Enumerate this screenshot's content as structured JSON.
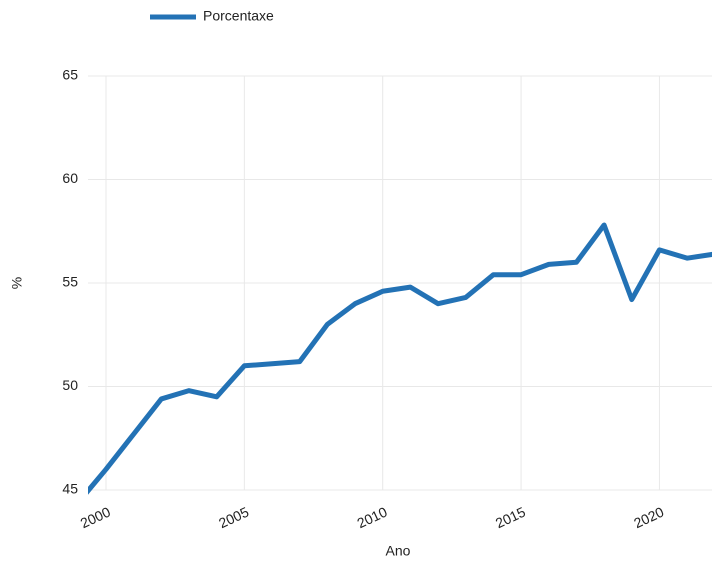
{
  "chart_data": {
    "type": "line",
    "x": [
      1999,
      2000,
      2001,
      2002,
      2003,
      2004,
      2005,
      2006,
      2007,
      2008,
      2009,
      2010,
      2011,
      2012,
      2013,
      2014,
      2015,
      2016,
      2017,
      2018,
      2019,
      2020,
      2021,
      2022
    ],
    "series": [
      {
        "name": "Porcentaxe",
        "color": "#2372b5",
        "values": [
          44.4,
          46.0,
          47.7,
          49.4,
          49.8,
          49.5,
          51.0,
          51.1,
          51.2,
          53.0,
          54.0,
          54.6,
          54.8,
          54.0,
          54.3,
          55.4,
          55.4,
          55.9,
          56.0,
          57.8,
          54.2,
          56.6,
          56.2,
          56.4
        ]
      }
    ],
    "xlim": [
      1999.35,
      2021.9
    ],
    "xticks": [
      2000,
      2005,
      2010,
      2015,
      2020
    ],
    "ylim": [
      45,
      65
    ],
    "yticks": [
      45,
      50,
      55,
      60,
      65
    ],
    "xlabel": "Ano",
    "ylabel": "%",
    "grid": true,
    "legend": "top"
  }
}
